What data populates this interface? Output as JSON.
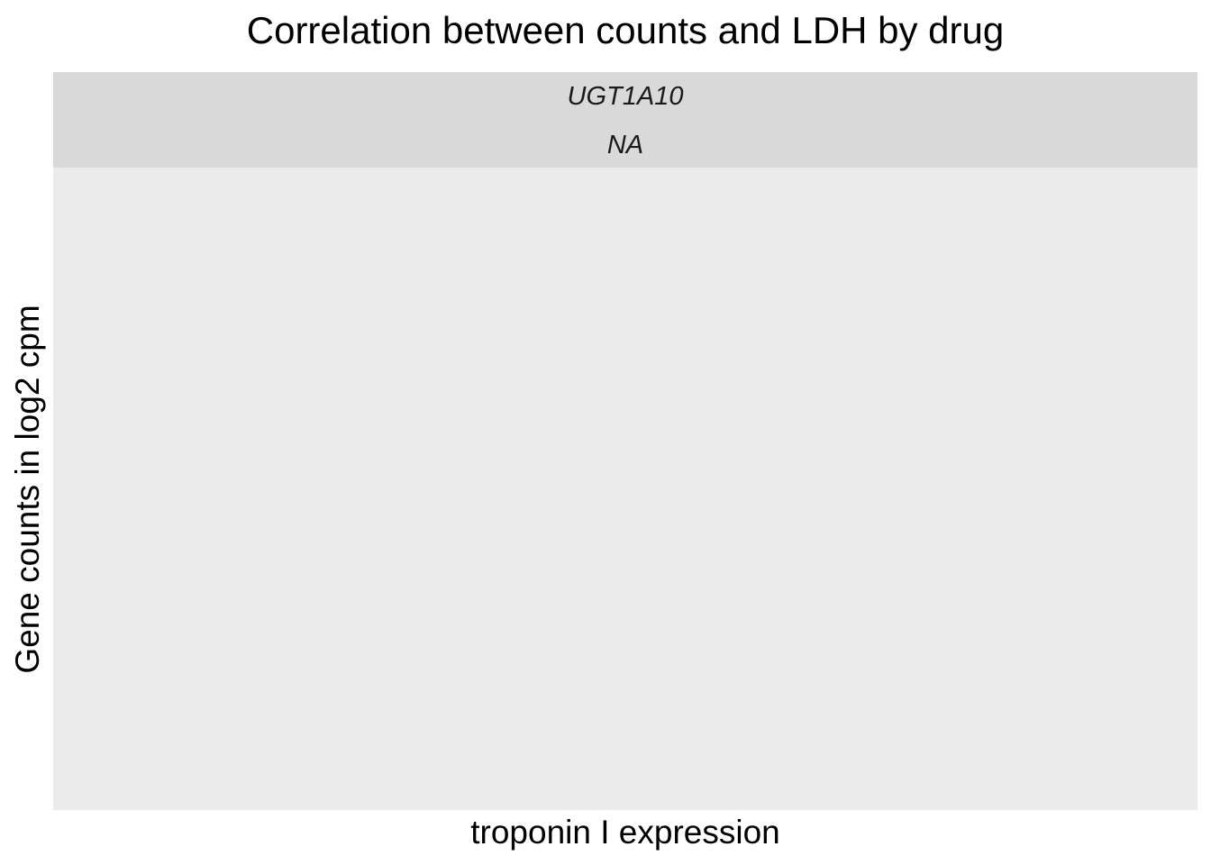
{
  "chart_data": {
    "type": "scatter",
    "title": "Correlation between counts and LDH by drug",
    "xlabel": "troponin I expression",
    "ylabel": "Gene counts in log2 cpm",
    "facets": [
      {
        "strip_labels": [
          "UGT1A10",
          "NA"
        ],
        "series": []
      }
    ],
    "grid": false,
    "legend": "none",
    "colors": {
      "panel_background": "#ebebeb",
      "strip_background": "#d9d9d9"
    }
  }
}
